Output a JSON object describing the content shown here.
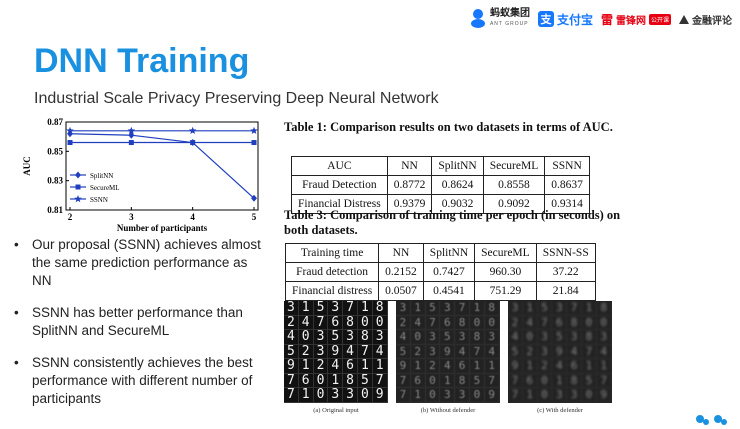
{
  "header": {
    "logos": {
      "antgroup": {
        "cn": "蚂蚁集团",
        "en": "ANT GROUP"
      },
      "alipay": {
        "mark": "支",
        "text": "支付宝"
      },
      "leifeng": {
        "mark": "雷",
        "text": "雷锋网",
        "tag": "公开课"
      },
      "jinrong": {
        "text": "金融评论"
      }
    }
  },
  "title": "DNN Training",
  "subtitle": "Industrial Scale Privacy Preserving Deep Neural Network",
  "chart_data": {
    "type": "line",
    "xlabel": "Number of participants",
    "ylabel": "AUC",
    "x": [
      2,
      3,
      4,
      5
    ],
    "xticks": [
      "2",
      "3",
      "4",
      "5"
    ],
    "ylim": [
      0.81,
      0.87
    ],
    "yticks": [
      "0.81",
      "0.83",
      "0.85",
      "0.87"
    ],
    "legend_position": "bottom-left",
    "grid": false,
    "series": [
      {
        "name": "SplitNN",
        "marker": "diamond",
        "color": "#1f3fbf",
        "values": [
          0.862,
          0.861,
          0.856,
          0.818
        ]
      },
      {
        "name": "SecureML",
        "marker": "square",
        "color": "#1f3fbf",
        "values": [
          0.856,
          0.856,
          0.856,
          0.856
        ]
      },
      {
        "name": "SSNN",
        "marker": "star",
        "color": "#1f3fbf",
        "values": [
          0.864,
          0.864,
          0.864,
          0.864
        ]
      }
    ]
  },
  "bullets": [
    "Our proposal (SSNN) achieves almost the same prediction performance as NN",
    "SSNN has better performance than SplitNN and SecureML",
    "SSNN consistently achieves the best performance with different number of participants"
  ],
  "bullet_symbol": "•",
  "table1": {
    "caption": "Table 1: Comparison results on two datasets in terms of AUC.",
    "headers": [
      "AUC",
      "NN",
      "SplitNN",
      "SecureML",
      "SSNN"
    ],
    "rows": [
      [
        "Fraud Detection",
        "0.8772",
        "0.8624",
        "0.8558",
        "0.8637"
      ],
      [
        "Financial Distress",
        "0.9379",
        "0.9032",
        "0.9092",
        "0.9314"
      ]
    ]
  },
  "table3": {
    "caption": "Table 3: Comparison of training time per epoch (in seconds) on both datasets.",
    "headers": [
      "Training time",
      "NN",
      "SplitNN",
      "SecureML",
      "SSNN-SS"
    ],
    "rows": [
      [
        "Fraud detection",
        "0.2152",
        "0.7427",
        "960.30",
        "37.22"
      ],
      [
        "Financial distress",
        "0.0507",
        "0.4541",
        "751.29",
        "21.84"
      ]
    ]
  },
  "digits": {
    "grid": [
      [
        "3",
        "1",
        "5",
        "3",
        "7",
        "1",
        "8"
      ],
      [
        "2",
        "4",
        "7",
        "6",
        "8",
        "0",
        "0"
      ],
      [
        "4",
        "0",
        "3",
        "5",
        "3",
        "8",
        "3"
      ],
      [
        "5",
        "2",
        "3",
        "9",
        "4",
        "7",
        "4"
      ],
      [
        "9",
        "1",
        "2",
        "4",
        "6",
        "1",
        "1"
      ],
      [
        "7",
        "6",
        "0",
        "1",
        "8",
        "5",
        "7"
      ],
      [
        "7",
        "1",
        "0",
        "3",
        "3",
        "0",
        "9"
      ]
    ],
    "captions": [
      "(a) Original input",
      "(b) Without defender",
      "(c) With defender"
    ]
  }
}
